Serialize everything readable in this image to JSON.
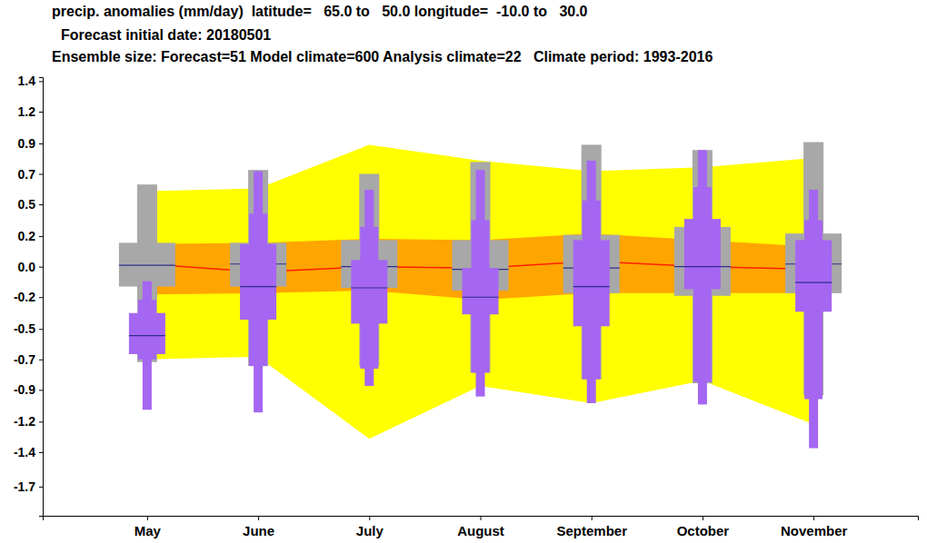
{
  "chart_data": {
    "type": "box",
    "title": "precip. anomalies (mm/day)  latitude=   65.0 to   50.0 longitude=  -10.0 to   30.0",
    "subtitle": [
      "Forecast initial date: 20180501",
      "Ensemble size: Forecast=51 Model climate=600 Analysis climate=22   Climate period: 1993-2016"
    ],
    "categories": [
      "May",
      "June",
      "July",
      "August",
      "September",
      "October",
      "November"
    ],
    "ylim": [
      -1.88,
      1.43
    ],
    "yticks": [
      {
        "value": 1.4,
        "label": "1.4"
      },
      {
        "value": 1.17,
        "label": "1.2"
      },
      {
        "value": 0.93,
        "label": "0.9"
      },
      {
        "value": 0.7,
        "label": "0.7"
      },
      {
        "value": 0.47,
        "label": "0.5"
      },
      {
        "value": 0.23,
        "label": "0.2"
      },
      {
        "value": 0,
        "label": "0.0"
      },
      {
        "value": -0.23,
        "label": "-0.2"
      },
      {
        "value": -0.47,
        "label": "-0.5"
      },
      {
        "value": -0.7,
        "label": "-0.7"
      },
      {
        "value": -0.93,
        "label": "-0.9"
      },
      {
        "value": -1.17,
        "label": "-1.2"
      },
      {
        "value": -1.4,
        "label": "-1.4"
      },
      {
        "value": -1.66,
        "label": "-1.7"
      }
    ],
    "series": [
      {
        "type": "area",
        "color": "#ffff00",
        "low": [
          -0.7,
          -0.68,
          -1.3,
          -0.9,
          -1.03,
          -0.86,
          -1.19
        ],
        "high": [
          0.57,
          0.59,
          0.92,
          0.8,
          0.72,
          0.75,
          0.82
        ]
      },
      {
        "type": "area",
        "color": "#ffa500",
        "low": [
          -0.21,
          -0.2,
          -0.18,
          -0.25,
          -0.2,
          -0.2,
          -0.2
        ],
        "high": [
          0.17,
          0.18,
          0.21,
          0.2,
          0.25,
          0.2,
          0.15
        ]
      },
      {
        "type": "line",
        "color": "#ff2000",
        "values": [
          0.02,
          -0.04,
          0.0,
          -0.01,
          0.04,
          0.0,
          -0.02
        ]
      },
      {
        "type": "box",
        "color": "#a8a8a8",
        "min": [
          -0.72,
          -0.75,
          -0.75,
          -0.8,
          -0.85,
          -0.88,
          -0.97
        ],
        "q1": [
          -0.15,
          -0.15,
          -0.16,
          -0.18,
          -0.2,
          -0.22,
          -0.2
        ],
        "median": [
          0.01,
          0.02,
          0.0,
          -0.02,
          -0.01,
          0.0,
          0.02
        ],
        "q3": [
          0.18,
          0.18,
          0.2,
          0.2,
          0.24,
          0.3,
          0.25
        ],
        "max": [
          0.62,
          0.73,
          0.7,
          0.79,
          0.92,
          0.88,
          0.94
        ]
      },
      {
        "type": "box",
        "color": "#a566f2",
        "min": [
          -1.08,
          -1.1,
          -0.9,
          -0.98,
          -1.03,
          -1.04,
          -1.37
        ],
        "p10": [
          -0.7,
          -0.75,
          -0.77,
          -0.8,
          -0.85,
          -0.87,
          -1.0
        ],
        "q1": [
          -0.66,
          -0.4,
          -0.43,
          -0.36,
          -0.45,
          -0.17,
          -0.34
        ],
        "median": [
          -0.52,
          -0.15,
          -0.16,
          -0.23,
          -0.15,
          0.0,
          -0.12
        ],
        "q3": [
          -0.35,
          0.17,
          0.05,
          -0.01,
          0.2,
          0.36,
          0.2
        ],
        "p90": [
          -0.25,
          0.4,
          0.3,
          0.35,
          0.5,
          0.6,
          0.35
        ],
        "max": [
          -0.11,
          0.72,
          0.58,
          0.73,
          0.8,
          0.88,
          0.58
        ]
      }
    ]
  }
}
